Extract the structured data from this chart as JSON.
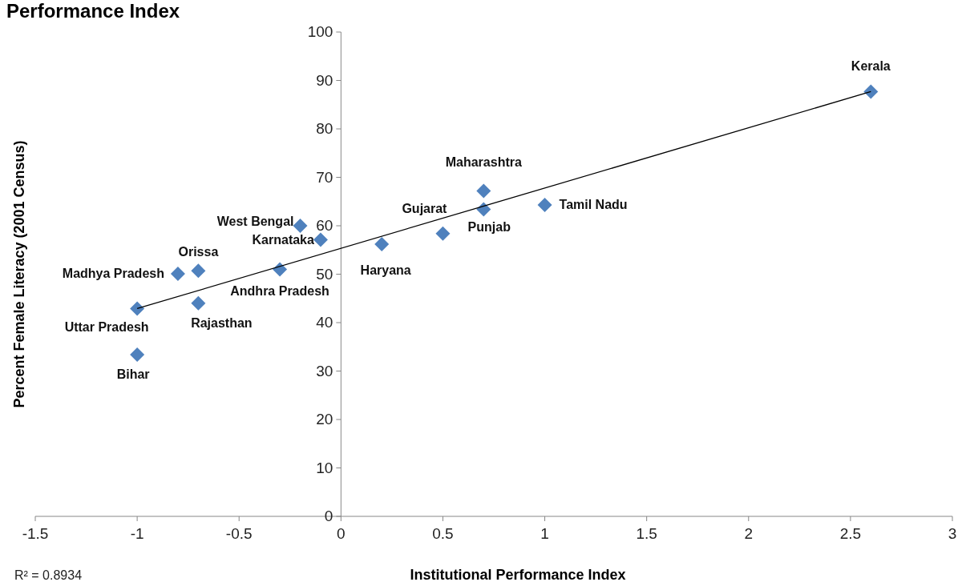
{
  "chart_data": {
    "type": "scatter",
    "title": "Performance Index",
    "xlabel": "Institutional Performance Index",
    "ylabel": "Percent Female Literacy (2001 Census)",
    "xlim": [
      -1.5,
      3
    ],
    "xticks": [
      -1.5,
      -1,
      -0.5,
      0,
      0.5,
      1,
      1.5,
      2,
      2.5,
      3
    ],
    "ylim": [
      0,
      100
    ],
    "yticks": [
      0,
      10,
      20,
      30,
      40,
      50,
      60,
      70,
      80,
      90,
      100
    ],
    "grid": false,
    "marker": "diamond",
    "series": [
      {
        "color": "#4f81bd",
        "x": [
          2.6,
          0.7,
          0.7,
          1.0,
          0.5,
          0.2,
          -0.2,
          -0.1,
          -0.3,
          -0.7,
          -0.8,
          -0.7,
          -1.0,
          -1.0
        ],
        "values": [
          87.7,
          67.2,
          63.4,
          64.3,
          58.4,
          56.2,
          60.0,
          57.1,
          51.0,
          50.7,
          50.1,
          44.0,
          42.9,
          33.4
        ]
      },
      {
        "type": "line",
        "color": "#000000",
        "x": [
          -1,
          2.6
        ],
        "values": [
          42.9,
          87.7
        ],
        "marker": "none"
      }
    ],
    "annotations": [
      {
        "text": "Kerala",
        "x": 2.6,
        "y": 87.7
      },
      {
        "text": "Maharashtra",
        "x": 0.7,
        "y": 67.2
      },
      {
        "text": "Punjab",
        "x": 0.7,
        "y": 63.4
      },
      {
        "text": "Tamil Nadu",
        "x": 1.0,
        "y": 64.3
      },
      {
        "text": "Gujarat",
        "x": 0.5,
        "y": 58.4
      },
      {
        "text": "Haryana",
        "x": 0.2,
        "y": 56.2
      },
      {
        "text": "West Bengal",
        "x": -0.2,
        "y": 60.0
      },
      {
        "text": "Karnataka",
        "x": -0.1,
        "y": 57.1
      },
      {
        "text": "Andhra Pradesh",
        "x": -0.3,
        "y": 51.0
      },
      {
        "text": "Orissa",
        "x": -0.7,
        "y": 50.7
      },
      {
        "text": "Madhya Pradesh",
        "x": -0.8,
        "y": 50.1
      },
      {
        "text": "Rajasthan",
        "x": -0.7,
        "y": 44.0
      },
      {
        "text": "Uttar Pradesh",
        "x": -1.0,
        "y": 42.9
      },
      {
        "text": "Bihar",
        "x": -1.0,
        "y": 33.4
      },
      "R² = 0.8934"
    ]
  }
}
